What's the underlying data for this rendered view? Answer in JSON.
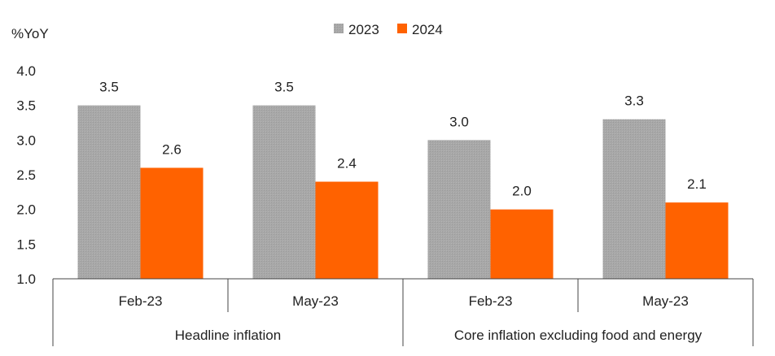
{
  "chart_data": {
    "type": "bar",
    "ylabel": "%YoY",
    "ylim": [
      1.0,
      4.0
    ],
    "yticks": [
      "1.0",
      "1.5",
      "2.0",
      "2.5",
      "3.0",
      "3.5",
      "4.0"
    ],
    "categories": [
      "Feb-23",
      "May-23",
      "Feb-23",
      "May-23"
    ],
    "groups": [
      "Headline inflation",
      "Core inflation excluding food and energy"
    ],
    "series": [
      {
        "name": "2023",
        "color": "#a6a6a6",
        "values": [
          3.5,
          3.5,
          3.0,
          3.3
        ],
        "labels": [
          "3.5",
          "3.5",
          "3.0",
          "3.3"
        ]
      },
      {
        "name": "2024",
        "color": "#ff6200",
        "values": [
          2.6,
          2.4,
          2.0,
          2.1
        ],
        "labels": [
          "2.6",
          "2.4",
          "2.0",
          "2.1"
        ]
      }
    ],
    "legend": "top-center",
    "grid": false
  }
}
